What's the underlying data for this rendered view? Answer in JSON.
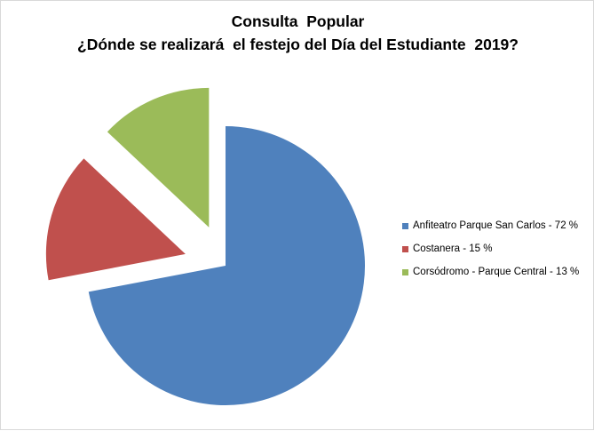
{
  "chart_data": {
    "type": "pie",
    "title": "Consulta  Popular",
    "subtitle": "¿Dónde se realizará  el festejo del Día del Estudiante  2019?",
    "slices": [
      {
        "label": "Anfiteatro Parque San Carlos - 72 %",
        "value": 72,
        "color": "#4f81bd",
        "exploded": false
      },
      {
        "label": "Costanera - 15 %",
        "value": 15,
        "color": "#c0504d",
        "exploded": true
      },
      {
        "label": "Corsódromo - Parque Central - 13 %",
        "value": 13,
        "color": "#9bbb59",
        "exploded": true
      }
    ],
    "legend_position": "right"
  }
}
